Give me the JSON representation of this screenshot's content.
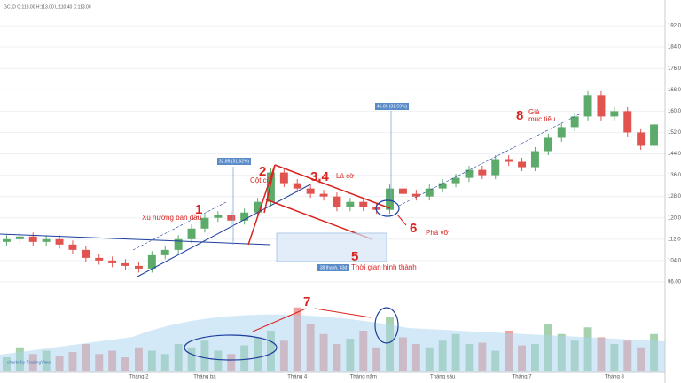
{
  "chart_data": {
    "type": "candlestick",
    "header": "GC, D  O:113.00 H:113.00 L:110.40 C:113.00",
    "footer": "charts by TradingView",
    "categories": [
      null,
      null,
      null,
      null,
      null,
      null,
      null,
      null,
      null,
      null,
      "Tháng 2",
      null,
      null,
      null,
      null,
      "Tháng ba",
      null,
      null,
      null,
      null,
      null,
      null,
      "Tháng 4",
      null,
      null,
      null,
      null,
      "Tháng năm",
      null,
      null,
      null,
      null,
      null,
      "Tháng sáu",
      null,
      null,
      null,
      null,
      null,
      "Tháng 7",
      null,
      null,
      null,
      null,
      null,
      null,
      "Tháng 8",
      null,
      null,
      null
    ],
    "open": [
      111,
      112,
      113,
      111,
      112,
      110,
      108,
      105,
      104,
      103,
      102,
      101,
      106,
      108,
      112,
      116,
      120,
      121,
      119,
      122,
      126,
      137,
      133,
      131,
      129,
      128,
      124,
      126,
      124,
      123,
      131,
      129,
      128,
      131,
      133,
      135,
      138,
      136,
      142,
      141,
      139,
      145,
      150,
      154,
      158,
      166,
      158,
      160,
      152,
      147
    ],
    "high": [
      113.5,
      114.5,
      114.5,
      113.5,
      113.5,
      111.5,
      109.5,
      106.5,
      105.5,
      104.5,
      103.5,
      107.5,
      109.5,
      113.5,
      117.5,
      121.5,
      122.5,
      122.5,
      123.5,
      127.5,
      138.5,
      138.5,
      134.5,
      132.5,
      130.5,
      129.5,
      127.5,
      127.5,
      125.5,
      132.5,
      132.5,
      130.5,
      132.5,
      134.5,
      136.5,
      139.5,
      139.5,
      143.5,
      143.5,
      142.5,
      146.5,
      151.5,
      155.5,
      159.5,
      167.5,
      167.5,
      161.5,
      161.5,
      153.5,
      156.5
    ],
    "low": [
      109.5,
      110.5,
      109.5,
      109.5,
      108.5,
      106.5,
      103.5,
      102.5,
      101.5,
      100.5,
      99.5,
      99.5,
      104.5,
      106.5,
      110.5,
      114.5,
      118.5,
      117.5,
      117.5,
      120.5,
      124.5,
      131.5,
      129.5,
      127.5,
      126.5,
      122.5,
      122.5,
      122.5,
      121.5,
      121.5,
      127.5,
      126.5,
      126.5,
      129.5,
      131.5,
      133.5,
      134.5,
      134.5,
      139.5,
      137.5,
      137.5,
      143.5,
      148.5,
      152.5,
      156.5,
      156.5,
      156.5,
      150.5,
      145.5,
      145.5
    ],
    "close": [
      112,
      113,
      111,
      112,
      110,
      108,
      105,
      104,
      103,
      102,
      101,
      106,
      108,
      112,
      116,
      120,
      121,
      119,
      122,
      126,
      137,
      133,
      131,
      129,
      128,
      124,
      126,
      124,
      123,
      131,
      129,
      128,
      131,
      133,
      135,
      138,
      136,
      142,
      141,
      139,
      145,
      150,
      154,
      158,
      166,
      158,
      160,
      152,
      147,
      155
    ],
    "volume": [
      20,
      35,
      25,
      30,
      22,
      28,
      40,
      25,
      30,
      20,
      35,
      30,
      25,
      40,
      35,
      45,
      30,
      25,
      38,
      50,
      60,
      45,
      95,
      70,
      55,
      40,
      48,
      60,
      35,
      80,
      50,
      40,
      35,
      45,
      55,
      40,
      42,
      30,
      60,
      38,
      40,
      70,
      55,
      45,
      65,
      50,
      40,
      45,
      35,
      55
    ],
    "up_color": "#5cab6a",
    "down_color": "#e0534f",
    "ylim": [
      92,
      200
    ],
    "vlim": [
      0,
      100
    ],
    "yticks": [
      {
        "value": 96,
        "label": "96.00"
      },
      {
        "value": 104,
        "label": "104.00"
      },
      {
        "value": 112,
        "label": "112.00"
      },
      {
        "value": 120,
        "label": "120.00"
      },
      {
        "value": 128,
        "label": "128.00"
      },
      {
        "value": 136,
        "label": "136.00"
      },
      {
        "value": 144,
        "label": "144.00"
      },
      {
        "value": 152,
        "label": "152.00"
      },
      {
        "value": 160,
        "label": "160.00"
      },
      {
        "value": 168,
        "label": "168.00"
      },
      {
        "value": 176,
        "label": "176.00"
      },
      {
        "value": 184,
        "label": "184.00"
      },
      {
        "value": 192,
        "label": "192.00"
      }
    ],
    "grid": true,
    "annotations": {
      "n1": "1",
      "t1": "Xu hướng ban đầu",
      "n2": "2",
      "t2": "Cột cờ",
      "n34": "3,4",
      "t34": "Lá cờ",
      "n5": "5",
      "t5": "Thời gian hình thành",
      "n6": "6",
      "t6": "Phá vỡ",
      "n7": "7",
      "n8": "8",
      "t8a": "Giá",
      "t8b": "mục tiêu",
      "box1": "32.85 (31.62%)",
      "box2": "46.00 (31.59%)",
      "box3": "38 thanh, 43d"
    }
  }
}
